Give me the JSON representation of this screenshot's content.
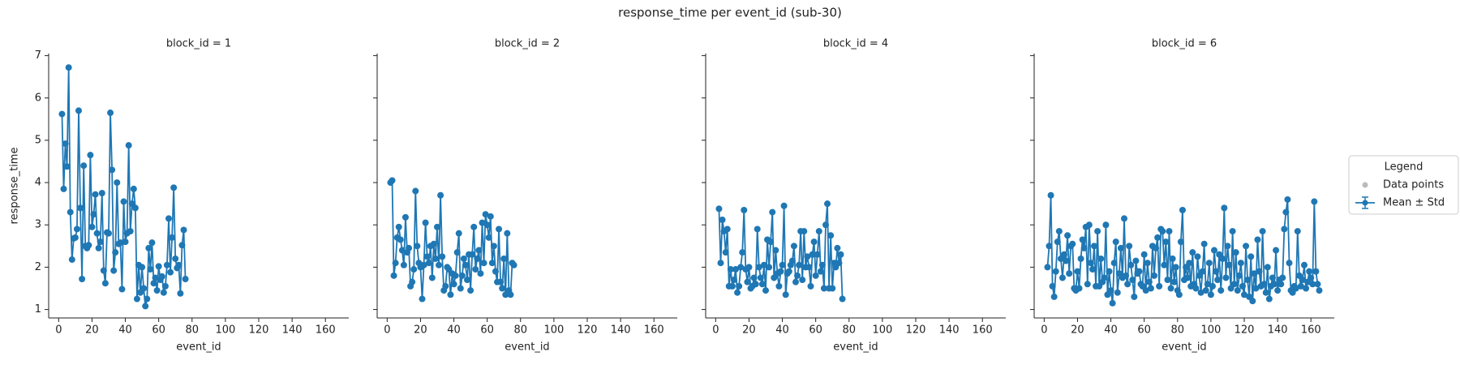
{
  "title": "response_time per event_id (sub-30)",
  "legend": {
    "title": "Legend",
    "position": "right",
    "entries": [
      {
        "name": "Data points",
        "color": "#bbbbbb"
      },
      {
        "name": "Mean ± Std",
        "color": "#1f77b4"
      }
    ]
  },
  "chart_data": [
    {
      "type": "line",
      "title": "block_id = 1",
      "xlabel": "event_id",
      "ylabel": "response_time",
      "xlim": [
        -6,
        174
      ],
      "xticks": [
        0,
        20,
        40,
        60,
        80,
        100,
        120,
        140,
        160
      ],
      "ylim": [
        0.8,
        7.05
      ],
      "yticks": [
        1,
        2,
        3,
        4,
        5,
        6,
        7
      ],
      "x": [
        2,
        3,
        4,
        5,
        6,
        7,
        8,
        9,
        10,
        11,
        12,
        13,
        14,
        15,
        16,
        17,
        18,
        19,
        20,
        21,
        22,
        23,
        24,
        25,
        26,
        27,
        28,
        29,
        30,
        31,
        32,
        33,
        34,
        35,
        36,
        37,
        38,
        39,
        40,
        41,
        42,
        43,
        44,
        45,
        46,
        47,
        48,
        49,
        50,
        51,
        52,
        53,
        54,
        55,
        56,
        57,
        58,
        59,
        60,
        61,
        62,
        63,
        64,
        65,
        66,
        67,
        68,
        69,
        70,
        71,
        72,
        73,
        74,
        75,
        76
      ],
      "series": [
        {
          "name": "Mean ± Std",
          "color": "#1f77b4",
          "values": [
            5.62,
            3.85,
            4.92,
            4.38,
            6.72,
            3.3,
            2.18,
            2.68,
            2.7,
            2.9,
            5.7,
            3.4,
            1.72,
            4.4,
            2.5,
            2.45,
            2.52,
            4.65,
            2.95,
            3.25,
            3.72,
            2.8,
            2.45,
            2.6,
            3.75,
            1.92,
            1.62,
            2.82,
            2.8,
            5.65,
            4.3,
            1.92,
            2.35,
            4.0,
            2.55,
            2.58,
            1.48,
            3.55,
            2.6,
            2.8,
            4.88,
            2.85,
            3.5,
            3.85,
            3.4,
            1.25,
            2.05,
            1.4,
            2.0,
            1.5,
            1.08,
            1.25,
            2.45,
            1.95,
            2.58,
            1.62,
            1.75,
            1.45,
            2.02,
            1.7,
            1.78,
            1.4,
            1.55,
            2.05,
            3.15,
            1.88,
            2.7,
            3.88,
            2.2,
            1.98,
            2.05,
            1.38,
            2.52,
            2.88,
            1.72
          ]
        }
      ]
    },
    {
      "type": "line",
      "title": "block_id = 2",
      "xlabel": "event_id",
      "xlim": [
        -6,
        174
      ],
      "xticks": [
        0,
        20,
        40,
        60,
        80,
        100,
        120,
        140,
        160
      ],
      "x": [
        2,
        3,
        4,
        5,
        6,
        7,
        8,
        9,
        10,
        11,
        12,
        13,
        14,
        15,
        16,
        17,
        18,
        19,
        20,
        21,
        22,
        23,
        24,
        25,
        26,
        27,
        28,
        29,
        30,
        31,
        32,
        33,
        34,
        35,
        36,
        37,
        38,
        39,
        40,
        41,
        42,
        43,
        44,
        45,
        46,
        47,
        48,
        49,
        50,
        51,
        52,
        53,
        54,
        55,
        56,
        57,
        58,
        59,
        60,
        61,
        62,
        63,
        64,
        65,
        66,
        67,
        68,
        69,
        70,
        71,
        72,
        73,
        74,
        75,
        76
      ],
      "series": [
        {
          "name": "Mean ± Std",
          "color": "#1f77b4",
          "values": [
            4.0,
            4.05,
            1.8,
            2.1,
            2.7,
            2.95,
            2.65,
            2.4,
            2.05,
            3.18,
            2.35,
            2.45,
            1.55,
            1.65,
            1.95,
            3.8,
            2.5,
            2.1,
            2.0,
            1.25,
            2.05,
            3.05,
            2.25,
            2.1,
            2.5,
            1.75,
            2.55,
            2.2,
            2.95,
            2.05,
            3.7,
            2.25,
            1.45,
            1.55,
            2.0,
            1.95,
            1.35,
            1.85,
            1.6,
            1.8,
            2.35,
            2.8,
            1.5,
            1.8,
            2.2,
            2.05,
            1.7,
            2.3,
            1.45,
            2.3,
            2.95,
            1.95,
            2.2,
            2.4,
            1.85,
            3.05,
            2.1,
            3.25,
            3.0,
            2.7,
            3.2,
            2.1,
            2.5,
            1.9,
            1.65,
            2.9,
            1.65,
            1.5,
            2.2,
            1.35,
            2.8,
            1.45,
            1.35,
            2.1,
            2.05
          ]
        }
      ]
    },
    {
      "type": "line",
      "title": "block_id = 4",
      "xlabel": "event_id",
      "xlim": [
        -6,
        174
      ],
      "xticks": [
        0,
        20,
        40,
        60,
        80,
        100,
        120,
        140,
        160
      ],
      "x": [
        2,
        3,
        4,
        5,
        6,
        7,
        8,
        9,
        10,
        11,
        12,
        13,
        14,
        15,
        16,
        17,
        18,
        19,
        20,
        21,
        22,
        23,
        24,
        25,
        26,
        27,
        28,
        29,
        30,
        31,
        32,
        33,
        34,
        35,
        36,
        37,
        38,
        39,
        40,
        41,
        42,
        43,
        44,
        45,
        46,
        47,
        48,
        49,
        50,
        51,
        52,
        53,
        54,
        55,
        56,
        57,
        58,
        59,
        60,
        61,
        62,
        63,
        64,
        65,
        66,
        67,
        68,
        69,
        70,
        71,
        72,
        73,
        74,
        75,
        76
      ],
      "series": [
        {
          "name": "Mean ± Std",
          "color": "#1f77b4",
          "values": [
            3.38,
            2.1,
            3.12,
            2.85,
            2.35,
            2.9,
            1.55,
            1.95,
            1.55,
            1.7,
            1.95,
            1.4,
            1.55,
            2.0,
            2.35,
            3.35,
            1.95,
            1.65,
            2.0,
            1.5,
            1.55,
            1.75,
            1.6,
            2.9,
            2.0,
            1.75,
            1.6,
            2.05,
            1.45,
            2.65,
            2.0,
            2.6,
            3.3,
            1.75,
            2.4,
            1.85,
            1.55,
            1.9,
            2.05,
            3.45,
            1.35,
            1.85,
            1.9,
            2.05,
            2.15,
            2.5,
            1.65,
            1.8,
            2.05,
            2.85,
            1.7,
            2.85,
            2.0,
            2.25,
            2.0,
            1.55,
            2.3,
            2.6,
            1.8,
            2.3,
            2.85,
            1.9,
            2.05,
            1.5,
            3.0,
            3.5,
            1.5,
            2.75,
            1.5,
            2.1,
            2.0,
            2.45,
            2.1,
            2.3,
            1.25
          ]
        }
      ]
    },
    {
      "type": "line",
      "title": "block_id = 6",
      "xlabel": "event_id",
      "xlim": [
        -6,
        174
      ],
      "xticks": [
        0,
        20,
        40,
        60,
        80,
        100,
        120,
        140,
        160
      ],
      "x": [
        2,
        3,
        4,
        5,
        6,
        7,
        8,
        9,
        10,
        11,
        12,
        13,
        14,
        15,
        16,
        17,
        18,
        19,
        20,
        21,
        22,
        23,
        24,
        25,
        26,
        27,
        28,
        29,
        30,
        31,
        32,
        33,
        34,
        35,
        36,
        37,
        38,
        39,
        40,
        41,
        42,
        43,
        44,
        45,
        46,
        47,
        48,
        49,
        50,
        51,
        52,
        53,
        54,
        55,
        56,
        57,
        58,
        59,
        60,
        61,
        62,
        63,
        64,
        65,
        66,
        67,
        68,
        69,
        70,
        71,
        72,
        73,
        74,
        75,
        76,
        77,
        78,
        79,
        80,
        81,
        82,
        83,
        84,
        85,
        86,
        87,
        88,
        89,
        90,
        91,
        92,
        93,
        94,
        95,
        96,
        97,
        98,
        99,
        100,
        101,
        102,
        103,
        104,
        105,
        106,
        107,
        108,
        109,
        110,
        111,
        112,
        113,
        114,
        115,
        116,
        117,
        118,
        119,
        120,
        121,
        122,
        123,
        124,
        125,
        126,
        127,
        128,
        129,
        130,
        131,
        132,
        133,
        134,
        135,
        136,
        137,
        138,
        139,
        140,
        141,
        142,
        143,
        144,
        145,
        146,
        147,
        148,
        149,
        150,
        151,
        152,
        153,
        154,
        155,
        156,
        157,
        158,
        159,
        160,
        161,
        162,
        163,
        164,
        165
      ],
      "series": [
        {
          "name": "Mean ± Std",
          "color": "#1f77b4",
          "values": [
            2.0,
            2.5,
            3.7,
            1.55,
            1.3,
            1.9,
            2.6,
            2.85,
            2.2,
            1.75,
            2.3,
            2.15,
            2.75,
            1.85,
            2.5,
            2.55,
            1.5,
            1.45,
            1.9,
            1.5,
            2.2,
            2.65,
            2.45,
            2.95,
            1.6,
            3.0,
            2.1,
            1.95,
            2.5,
            1.55,
            2.85,
            1.55,
            2.2,
            1.65,
            1.75,
            3.0,
            1.35,
            1.9,
            1.45,
            1.15,
            2.1,
            2.6,
            1.4,
            1.85,
            2.45,
            1.75,
            3.15,
            1.8,
            1.6,
            2.5,
            2.05,
            1.7,
            1.3,
            2.15,
            1.85,
            1.9,
            1.6,
            1.55,
            2.3,
            1.45,
            2.1,
            1.65,
            1.5,
            2.5,
            1.8,
            2.45,
            2.7,
            1.55,
            2.9,
            2.85,
            2.05,
            2.6,
            1.7,
            2.85,
            1.5,
            2.2,
            1.65,
            2.0,
            1.45,
            1.35,
            2.6,
            3.35,
            1.7,
            2.0,
            1.75,
            2.1,
            1.55,
            2.35,
            1.6,
            1.5,
            2.25,
            1.8,
            1.4,
            1.9,
            2.55,
            1.45,
            1.6,
            2.1,
            1.35,
            1.55,
            2.4,
            1.9,
            1.7,
            2.3,
            1.45,
            2.2,
            3.4,
            1.75,
            2.5,
            2.05,
            1.5,
            2.85,
            1.6,
            2.35,
            1.45,
            1.8,
            2.1,
            1.55,
            1.35,
            2.5,
            1.7,
            1.3,
            2.25,
            1.2,
            1.85,
            1.5,
            2.65,
            1.9,
            1.55,
            2.85,
            1.6,
            1.4,
            2.0,
            1.25,
            1.55,
            1.75,
            1.6,
            2.4,
            1.45,
            1.7,
            1.6,
            1.75,
            2.9,
            3.3,
            3.6,
            2.1,
            1.45,
            1.4,
            1.55,
            1.5,
            2.85,
            1.8,
            1.55,
            1.7,
            2.05,
            1.5,
            1.65,
            1.9,
            1.75,
            1.6,
            3.55,
            1.9,
            1.6,
            1.45
          ]
        }
      ]
    }
  ]
}
